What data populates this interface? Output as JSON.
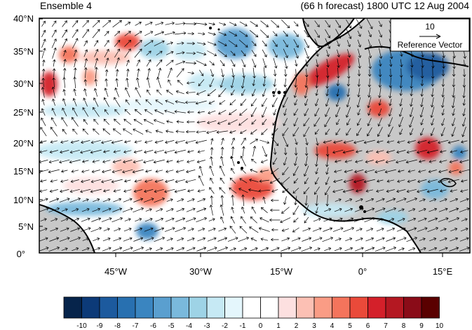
{
  "header": {
    "left_title": "Ensemble 4",
    "right_title": "(66 h forecast) 1800 UTC 12 Aug 2004"
  },
  "map": {
    "lat_labels": [
      "40°N",
      "35°N",
      "30°N",
      "25°N",
      "20°N",
      "15°N",
      "10°N",
      "5°N",
      "0°"
    ],
    "lon_labels": [
      "45°W",
      "30°W",
      "15°W",
      "0°",
      "15°E"
    ],
    "extent": {
      "lon_min": -57,
      "lon_max": 19,
      "lat_min": 0,
      "lat_max": 40
    },
    "land_color": "#c8c8c8",
    "coast_color": "#000000",
    "vector_color": "#000000"
  },
  "reference_vector": {
    "magnitude": "10",
    "label": "Reference Vector"
  },
  "colorbar": {
    "labels": [
      "-10",
      "-9",
      "-8",
      "-7",
      "-6",
      "-5",
      "-4",
      "-3",
      "-2",
      "-1",
      "0",
      "1",
      "2",
      "3",
      "4",
      "5",
      "6",
      "7",
      "8",
      "9",
      "10"
    ],
    "colors": [
      "#06244b",
      "#0c3a78",
      "#1c5a9e",
      "#2870b0",
      "#3a85c0",
      "#5a9fcf",
      "#7ab9dc",
      "#9ed3e6",
      "#c6e9f4",
      "#e4f6fc",
      "#ffffff",
      "#ffffff",
      "#fde0e0",
      "#fcc0b4",
      "#fa9c85",
      "#f4745c",
      "#ea4a3a",
      "#d4202a",
      "#b41822",
      "#8a0c18",
      "#5a0000"
    ]
  }
}
